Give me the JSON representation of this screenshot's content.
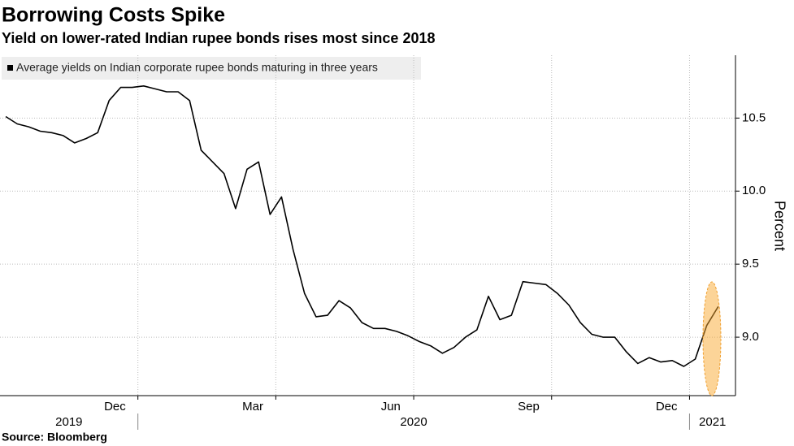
{
  "chart_data": {
    "type": "line",
    "title": "Borrowing Costs Spike",
    "subtitle": "Yield on lower-rated Indian rupee bonds rises most since 2018",
    "y_label": "Percent",
    "source": "Source: Bloomberg",
    "x": [
      "2019-10",
      "2019-10",
      "2019-10",
      "2019-10",
      "2019-11",
      "2019-11",
      "2019-11",
      "2019-11",
      "2019-12",
      "2019-12",
      "2019-12",
      "2019-12",
      "2020-01",
      "2020-01",
      "2020-01",
      "2020-01",
      "2020-02",
      "2020-02",
      "2020-02",
      "2020-02",
      "2020-03",
      "2020-03",
      "2020-03",
      "2020-03",
      "2020-04",
      "2020-04",
      "2020-04",
      "2020-04",
      "2020-05",
      "2020-05",
      "2020-05",
      "2020-05",
      "2020-06",
      "2020-06",
      "2020-06",
      "2020-06",
      "2020-07",
      "2020-07",
      "2020-07",
      "2020-07",
      "2020-08",
      "2020-08",
      "2020-08",
      "2020-08",
      "2020-09",
      "2020-09",
      "2020-09",
      "2020-09",
      "2020-10",
      "2020-10",
      "2020-10",
      "2020-10",
      "2020-11",
      "2020-11",
      "2020-11",
      "2020-11",
      "2020-12",
      "2020-12",
      "2020-12",
      "2020-12",
      "2021-01",
      "2021-01",
      "2021-01"
    ],
    "series": [
      {
        "name": "Average yields on Indian corporate rupee bonds maturing in three years",
        "color": "#000000",
        "values": [
          10.51,
          10.46,
          10.44,
          10.41,
          10.4,
          10.38,
          10.33,
          10.36,
          10.4,
          10.62,
          10.71,
          10.71,
          10.72,
          10.7,
          10.68,
          10.68,
          10.62,
          10.28,
          10.2,
          10.12,
          9.88,
          10.15,
          10.2,
          9.84,
          9.96,
          9.6,
          9.3,
          9.14,
          9.15,
          9.25,
          9.2,
          9.1,
          9.06,
          9.06,
          9.04,
          9.01,
          8.97,
          8.94,
          8.89,
          8.93,
          9.0,
          9.05,
          9.28,
          9.12,
          9.15,
          9.38,
          9.37,
          9.36,
          9.3,
          9.22,
          9.1,
          9.02,
          9.0,
          9.0,
          8.9,
          8.82,
          8.86,
          8.83,
          8.84,
          8.8,
          8.85,
          9.08,
          9.21
        ]
      }
    ],
    "xlim": [
      "2019-10",
      "2021-01"
    ],
    "xticks": [
      {
        "value": "2019-12",
        "label": "Dec"
      },
      {
        "value": "2020-03",
        "label": "Mar"
      },
      {
        "value": "2020-06",
        "label": "Jun"
      },
      {
        "value": "2020-09",
        "label": "Sep"
      },
      {
        "value": "2020-12",
        "label": "Dec"
      }
    ],
    "years": [
      "2019",
      "2020",
      "2021"
    ],
    "ylim": [
      8.6,
      10.93
    ],
    "yticks": [
      {
        "value": 9.0,
        "label": "9.0"
      },
      9.5,
      {
        "value": 10.0,
        "label": "10.0"
      },
      10.5
    ],
    "grid": true
  }
}
